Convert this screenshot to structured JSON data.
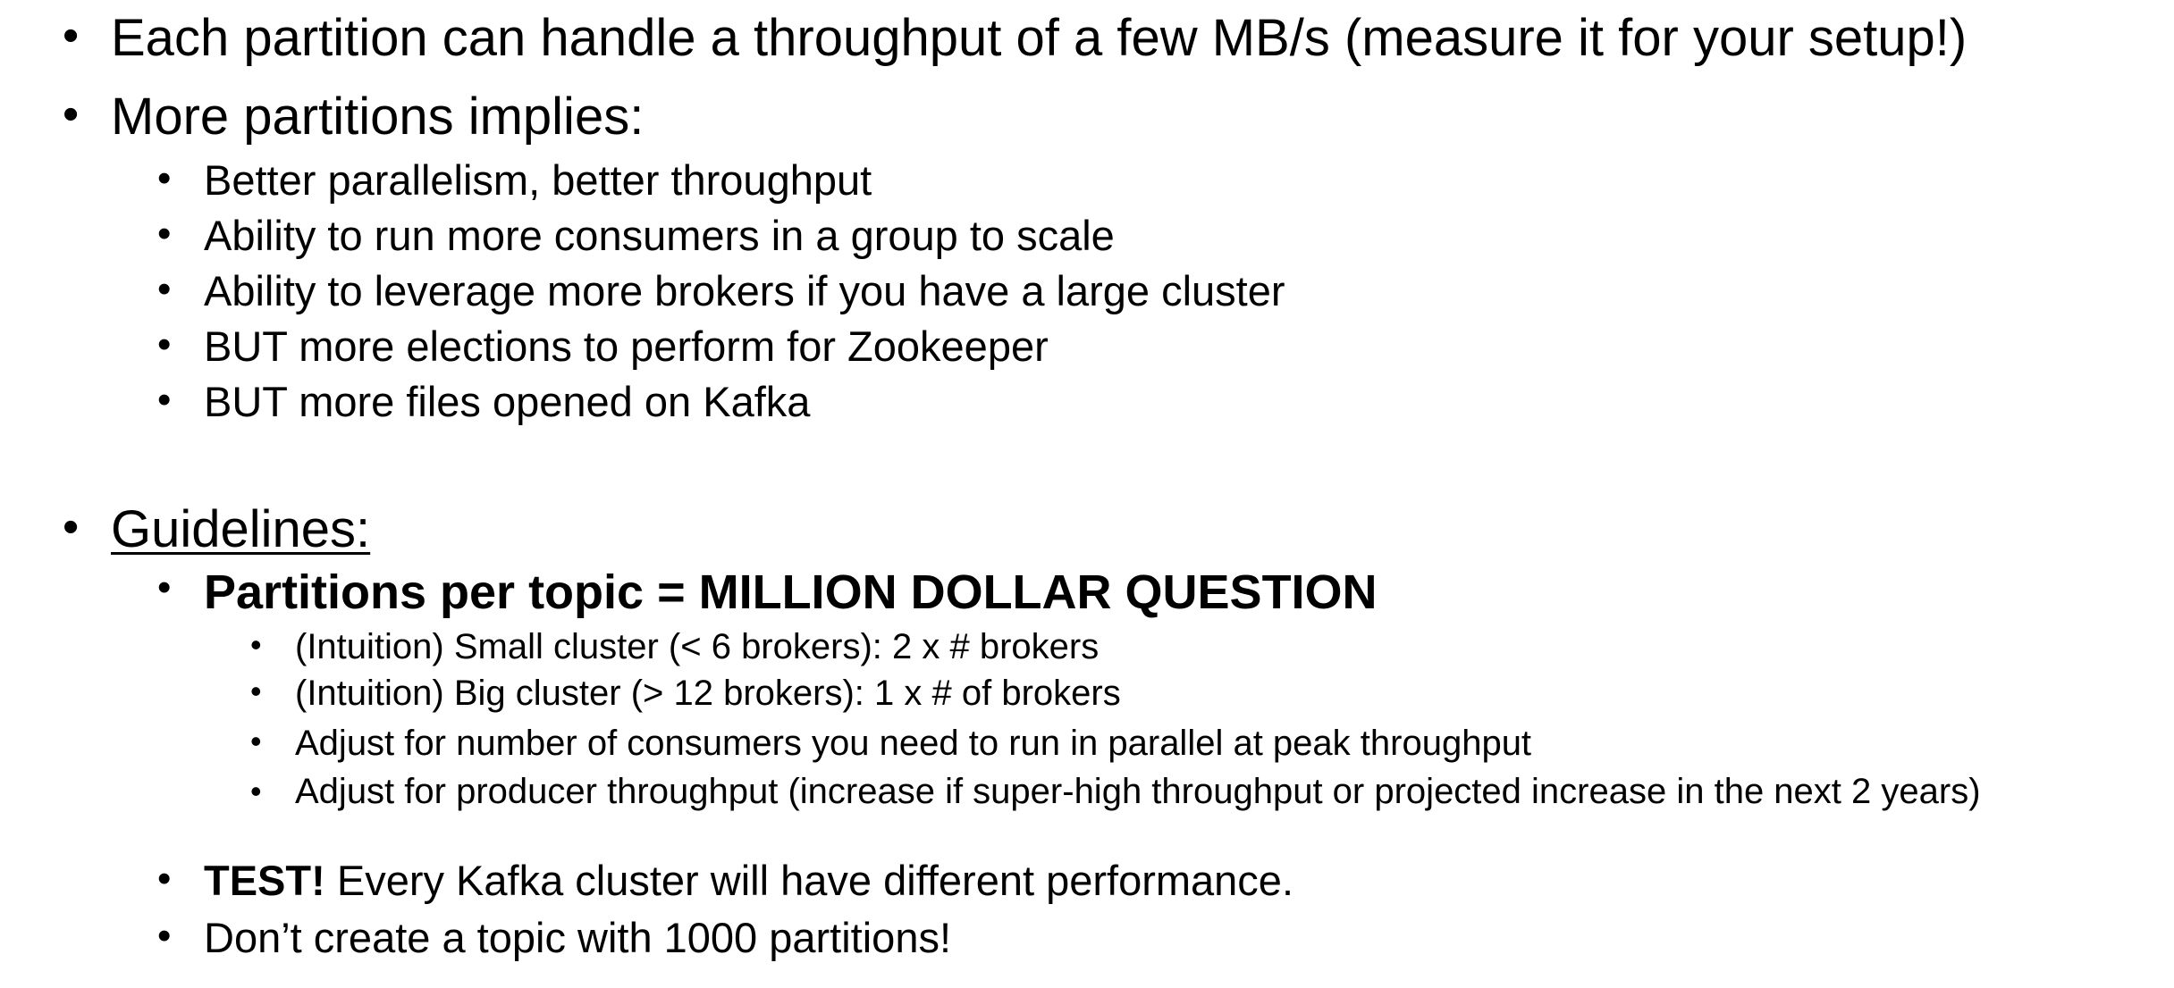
{
  "bullets": {
    "throughput": "Each partition can handle a throughput of a few MB/s (measure it for your setup!)",
    "more_partitions": "More partitions implies:",
    "implies": [
      "Better parallelism, better throughput",
      "Ability to run more consumers in a group to scale",
      "Ability to leverage more brokers if you have a large cluster",
      "BUT more elections to perform for Zookeeper",
      "BUT more files opened on Kafka"
    ],
    "guidelines": "Guidelines:",
    "partitions_per_topic": "Partitions per topic = MILLION DOLLAR QUESTION",
    "sub_guidelines": [
      "(Intuition) Small cluster (< 6 brokers): 2 x # brokers",
      "(Intuition) Big cluster (> 12 brokers): 1 x # of brokers",
      "Adjust for number of consumers you need to run in parallel at peak throughput",
      "Adjust for producer throughput (increase if super-high throughput or projected increase in the next 2 years)"
    ],
    "test_bold": "TEST!",
    "test_rest": " Every Kafka cluster will have different performance.",
    "dont_create": "Don’t create a topic with 1000 partitions!"
  },
  "bullet_symbol": "•"
}
